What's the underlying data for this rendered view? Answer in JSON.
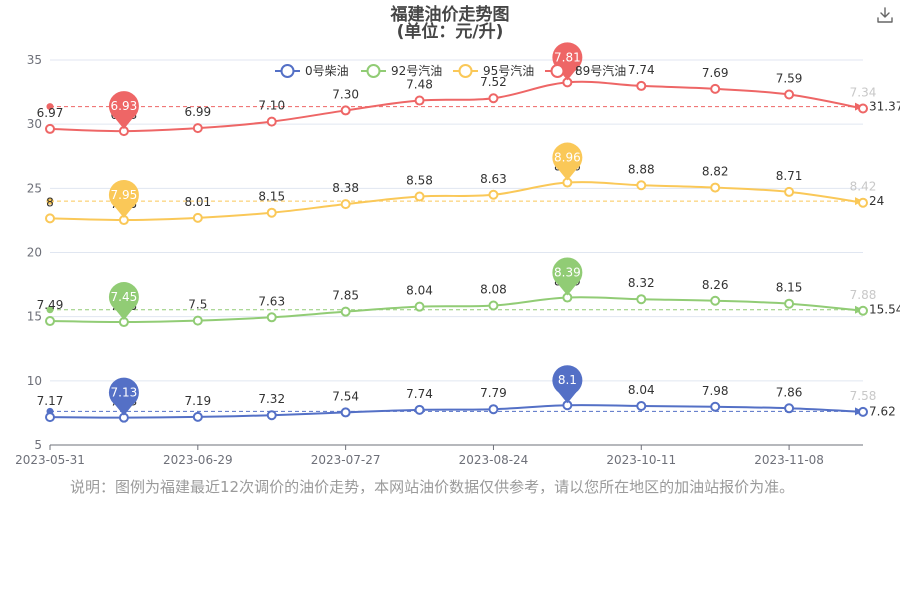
{
  "title": "福建油价走势图",
  "subtitle": "(单位：元/升)",
  "note": "说明：图例为福建最近12次调价的油价走势，本网站油价数据仅供参考，请以您所在地区的加油站报价为准。",
  "toolbar": {
    "download_icon": "download-icon"
  },
  "chart_data": {
    "type": "line",
    "y_axis": {
      "min": 5,
      "max": 35,
      "ticks": [
        "35",
        "30",
        "25",
        "20",
        "15",
        "10",
        "5"
      ],
      "grid": true
    },
    "x_ticks": [
      "2023-05-31",
      "2023-06-29",
      "2023-07-27",
      "2023-08-24",
      "2023-10-11",
      "2023-11-08"
    ],
    "legend_position": "top-center",
    "series": [
      {
        "name": "0号柴油",
        "color": "#5470c6",
        "labels": [
          "7.17",
          "7.13",
          "7.19",
          "7.32",
          "7.54",
          "7.74",
          "7.79",
          "8.1",
          "8.04",
          "7.98",
          "7.86",
          "7.58"
        ],
        "stacked_values": [
          7.17,
          7.13,
          7.19,
          7.32,
          7.54,
          7.74,
          7.79,
          8.1,
          8.04,
          7.98,
          7.86,
          7.58
        ],
        "max": {
          "value": "8.1",
          "index": 7
        },
        "min": {
          "value": "7.13",
          "index": 1
        },
        "average": "7.62"
      },
      {
        "name": "92号汽油",
        "color": "#91cc75",
        "labels": [
          "7.49",
          "7.45",
          "7.5",
          "7.63",
          "7.85",
          "8.04",
          "8.08",
          "8.39",
          "8.32",
          "8.26",
          "8.15",
          "7.88"
        ],
        "stacked_values": [
          14.66,
          14.58,
          14.69,
          14.95,
          15.39,
          15.78,
          15.87,
          16.49,
          16.36,
          16.24,
          16.01,
          15.46
        ],
        "max": {
          "value": "8.39",
          "index": 7
        },
        "min": {
          "value": "7.45",
          "index": 1
        },
        "average": "15.54"
      },
      {
        "name": "95号汽油",
        "color": "#fac858",
        "labels": [
          "8",
          "7.95",
          "8.01",
          "8.15",
          "8.38",
          "8.58",
          "8.63",
          "8.96",
          "8.88",
          "8.82",
          "8.71",
          "8.42"
        ],
        "stacked_values": [
          22.66,
          22.53,
          22.7,
          23.1,
          23.77,
          24.36,
          24.5,
          25.45,
          25.24,
          25.06,
          24.72,
          23.88
        ],
        "max": {
          "value": "8.96",
          "index": 7
        },
        "min": {
          "value": "7.95",
          "index": 1
        },
        "average": "24"
      },
      {
        "name": "89号汽油",
        "color": "#ee6666",
        "labels": [
          "6.97",
          "6.93",
          "6.99",
          "7.10",
          "7.30",
          "7.48",
          "7.52",
          "7.81",
          "7.74",
          "7.69",
          "7.59",
          "7.34"
        ],
        "stacked_values": [
          29.63,
          29.46,
          29.69,
          30.2,
          31.07,
          31.84,
          32.02,
          33.26,
          32.98,
          32.75,
          32.31,
          31.22
        ],
        "max": {
          "value": "7.81",
          "index": 7
        },
        "min": {
          "value": "6.93",
          "index": 1
        },
        "average": "31.37"
      }
    ]
  }
}
